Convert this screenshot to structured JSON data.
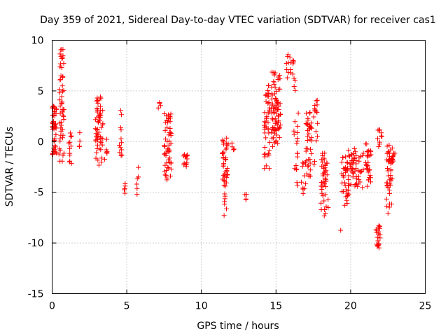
{
  "chart_data": {
    "type": "scatter",
    "title": "Day 359 of 2021, Sidereal Day-to-day VTEC variation (SDTVAR) for receiver cas1",
    "xlabel": "GPS time / hours",
    "ylabel": "SDTVAR / TECUs",
    "xlim": [
      0,
      25
    ],
    "ylim": [
      -15,
      10
    ],
    "xticks": [
      0,
      5,
      10,
      15,
      20,
      25
    ],
    "yticks": [
      -15,
      -10,
      -5,
      0,
      5,
      10
    ],
    "xtick_labels": [
      "0",
      "5",
      "10",
      "15",
      "20",
      "25"
    ],
    "ytick_labels": [
      "-15",
      "-10",
      "-5",
      "0",
      "5",
      "10"
    ],
    "grid": true,
    "marker": "+",
    "color": "#ff0000",
    "clusters": [
      {
        "x": [
          0.0,
          0.3
        ],
        "y": [
          -1.4,
          3.6
        ],
        "n": 45
      },
      {
        "x": [
          0.45,
          0.8
        ],
        "y": [
          -2.2,
          9.4
        ],
        "n": 55
      },
      {
        "x": [
          1.1,
          1.3
        ],
        "y": [
          -2.8,
          1.9
        ],
        "n": 12
      },
      {
        "x": [
          1.7,
          1.9
        ],
        "y": [
          -1.0,
          1.0
        ],
        "n": 4
      },
      {
        "x": [
          2.9,
          3.4
        ],
        "y": [
          -2.4,
          4.4
        ],
        "n": 60
      },
      {
        "x": [
          3.5,
          3.7
        ],
        "y": [
          -2.0,
          0.5
        ],
        "n": 6
      },
      {
        "x": [
          4.5,
          4.7
        ],
        "y": [
          -1.7,
          3.1
        ],
        "n": 12
      },
      {
        "x": [
          4.8,
          4.9
        ],
        "y": [
          -5.1,
          -3.6
        ],
        "n": 5
      },
      {
        "x": [
          5.6,
          5.8
        ],
        "y": [
          -5.3,
          -2.3
        ],
        "n": 6
      },
      {
        "x": [
          7.1,
          7.3
        ],
        "y": [
          2.3,
          4.2
        ],
        "n": 4
      },
      {
        "x": [
          7.5,
          8.0
        ],
        "y": [
          -3.8,
          3.2
        ],
        "n": 55
      },
      {
        "x": [
          8.8,
          9.1
        ],
        "y": [
          -2.6,
          -1.2
        ],
        "n": 14
      },
      {
        "x": [
          11.4,
          11.8
        ],
        "y": [
          -7.4,
          0.4
        ],
        "n": 45
      },
      {
        "x": [
          12.0,
          12.2
        ],
        "y": [
          -1.0,
          0.0
        ],
        "n": 4
      },
      {
        "x": [
          12.9,
          13.1
        ],
        "y": [
          -6.0,
          -5.2
        ],
        "n": 4
      },
      {
        "x": [
          14.2,
          14.6
        ],
        "y": [
          -2.8,
          5.6
        ],
        "n": 45
      },
      {
        "x": [
          14.7,
          15.3
        ],
        "y": [
          -0.6,
          6.9
        ],
        "n": 80
      },
      {
        "x": [
          15.7,
          16.3
        ],
        "y": [
          5.0,
          8.6
        ],
        "n": 20
      },
      {
        "x": [
          16.2,
          16.5
        ],
        "y": [
          -4.7,
          2.8
        ],
        "n": 18
      },
      {
        "x": [
          16.7,
          17.0
        ],
        "y": [
          -5.9,
          -2.0
        ],
        "n": 12
      },
      {
        "x": [
          17.0,
          17.4
        ],
        "y": [
          -3.5,
          3.1
        ],
        "n": 40
      },
      {
        "x": [
          17.5,
          17.8
        ],
        "y": [
          -2.6,
          4.6
        ],
        "n": 16
      },
      {
        "x": [
          18.0,
          18.5
        ],
        "y": [
          -7.4,
          -1.0
        ],
        "n": 45
      },
      {
        "x": [
          19.3,
          19.5
        ],
        "y": [
          -8.9,
          -8.6
        ],
        "n": 1
      },
      {
        "x": [
          19.4,
          19.8
        ],
        "y": [
          -6.3,
          -1.2
        ],
        "n": 30
      },
      {
        "x": [
          19.8,
          20.3
        ],
        "y": [
          -5.4,
          -0.7
        ],
        "n": 35
      },
      {
        "x": [
          20.3,
          20.9
        ],
        "y": [
          -4.6,
          -1.0
        ],
        "n": 25
      },
      {
        "x": [
          21.0,
          21.4
        ],
        "y": [
          -5.1,
          -0.2
        ],
        "n": 30
      },
      {
        "x": [
          21.7,
          22.0
        ],
        "y": [
          -11.0,
          -8.3
        ],
        "n": 20
      },
      {
        "x": [
          21.8,
          22.1
        ],
        "y": [
          -0.6,
          1.4
        ],
        "n": 10
      },
      {
        "x": [
          22.4,
          22.8
        ],
        "y": [
          -7.3,
          0.0
        ],
        "n": 45
      },
      {
        "x": [
          22.8,
          23.0
        ],
        "y": [
          -2.0,
          -1.0
        ],
        "n": 8
      }
    ]
  }
}
